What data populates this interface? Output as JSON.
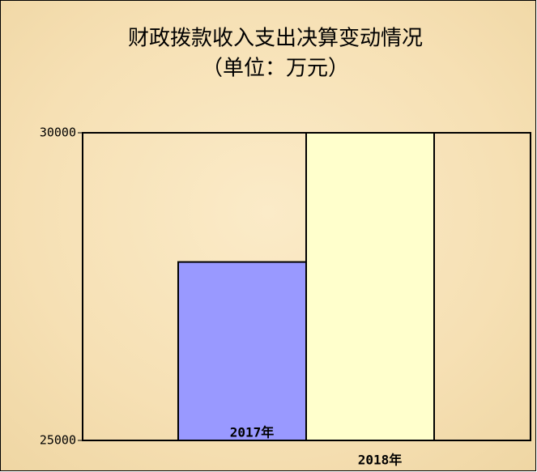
{
  "chart_data": {
    "type": "bar",
    "title": "财政拨款收入支出决算变动情况",
    "subtitle": "（单位：万元）",
    "categories": [
      "2017年",
      "2018年"
    ],
    "values": [
      27900,
      30000
    ],
    "colors": [
      "#9999ff",
      "#ffffcc"
    ],
    "ylim": [
      25000,
      30000
    ],
    "yticks": [
      25000,
      30000
    ],
    "grid": false
  }
}
